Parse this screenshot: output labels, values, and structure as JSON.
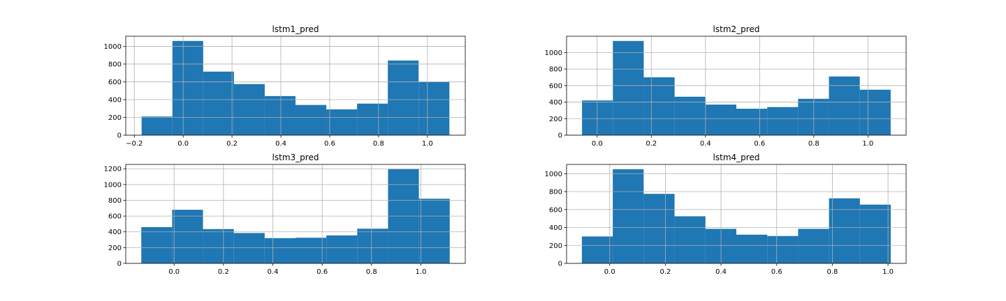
{
  "chart_data": [
    {
      "type": "bar",
      "subtype": "histogram",
      "title": "lstm1_pred",
      "bin_edges": [
        -0.17,
        -0.044,
        0.082,
        0.208,
        0.334,
        0.46,
        0.586,
        0.712,
        0.838,
        0.964,
        1.09
      ],
      "values": [
        210,
        1060,
        715,
        575,
        440,
        340,
        290,
        355,
        840,
        600
      ],
      "xlim": [
        -0.235,
        1.155
      ],
      "ylim": [
        0,
        1113
      ],
      "xticks": [
        -0.2,
        0.0,
        0.2,
        0.4,
        0.6,
        0.8,
        1.0
      ],
      "xtick_labels": [
        "−0.2",
        "0.0",
        "0.2",
        "0.4",
        "0.6",
        "0.8",
        "1.0"
      ],
      "yticks": [
        0,
        200,
        400,
        600,
        800,
        1000
      ],
      "ytick_labels": [
        "0",
        "200",
        "400",
        "600",
        "800",
        "1000"
      ],
      "grid": true,
      "color": "#1f77b4"
    },
    {
      "type": "bar",
      "subtype": "histogram",
      "title": "lstm2_pred",
      "bin_edges": [
        -0.056,
        0.058,
        0.172,
        0.286,
        0.4,
        0.514,
        0.628,
        0.742,
        0.856,
        0.97,
        1.084
      ],
      "values": [
        420,
        1140,
        700,
        465,
        370,
        320,
        340,
        440,
        710,
        550
      ],
      "xlim": [
        -0.113,
        1.141
      ],
      "ylim": [
        0,
        1197
      ],
      "xticks": [
        0.0,
        0.2,
        0.4,
        0.6,
        0.8,
        1.0
      ],
      "xtick_labels": [
        "0.0",
        "0.2",
        "0.4",
        "0.6",
        "0.8",
        "1.0"
      ],
      "yticks": [
        0,
        200,
        400,
        600,
        800,
        1000
      ],
      "ytick_labels": [
        "0",
        "200",
        "400",
        "600",
        "800",
        "1000"
      ],
      "grid": true,
      "color": "#1f77b4"
    },
    {
      "type": "bar",
      "subtype": "histogram",
      "title": "lstm3_pred",
      "bin_edges": [
        -0.133,
        -0.008,
        0.117,
        0.242,
        0.367,
        0.492,
        0.617,
        0.742,
        0.867,
        0.992,
        1.117
      ],
      "values": [
        460,
        680,
        435,
        385,
        320,
        325,
        355,
        440,
        1195,
        820
      ],
      "xlim": [
        -0.196,
        1.18
      ],
      "ylim": [
        0,
        1255
      ],
      "xticks": [
        0.0,
        0.2,
        0.4,
        0.6,
        0.8,
        1.0
      ],
      "xtick_labels": [
        "0.0",
        "0.2",
        "0.4",
        "0.6",
        "0.8",
        "1.0"
      ],
      "yticks": [
        0,
        200,
        400,
        600,
        800,
        1000,
        1200
      ],
      "ytick_labels": [
        "0",
        "200",
        "400",
        "600",
        "800",
        "1000",
        "1200"
      ],
      "grid": true,
      "color": "#1f77b4"
    },
    {
      "type": "bar",
      "subtype": "histogram",
      "title": "lstm4_pred",
      "bin_edges": [
        -0.1,
        0.011,
        0.122,
        0.233,
        0.344,
        0.455,
        0.566,
        0.677,
        0.788,
        0.899,
        1.01
      ],
      "values": [
        300,
        1050,
        775,
        525,
        385,
        320,
        305,
        385,
        725,
        655
      ],
      "xlim": [
        -0.155,
        1.065
      ],
      "ylim": [
        0,
        1103
      ],
      "xticks": [
        0.0,
        0.2,
        0.4,
        0.6,
        0.8,
        1.0
      ],
      "xtick_labels": [
        "0.0",
        "0.2",
        "0.4",
        "0.6",
        "0.8",
        "1.0"
      ],
      "yticks": [
        0,
        200,
        400,
        600,
        800,
        1000
      ],
      "ytick_labels": [
        "0",
        "200",
        "400",
        "600",
        "800",
        "1000"
      ],
      "grid": true,
      "color": "#1f77b4"
    }
  ]
}
